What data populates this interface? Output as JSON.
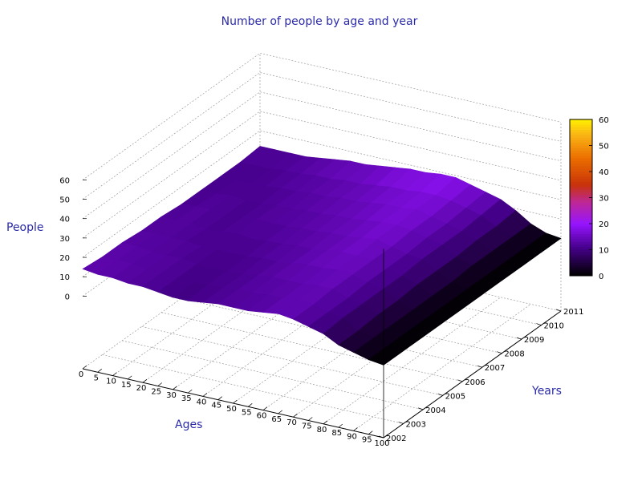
{
  "chart_data": {
    "type": "surface3d",
    "title": "Number of people by age and year",
    "xlabel": "Ages",
    "ylabel": "Years",
    "zlabel": "People",
    "ages": [
      0,
      5,
      10,
      15,
      20,
      25,
      30,
      35,
      40,
      45,
      50,
      55,
      60,
      65,
      70,
      75,
      80,
      85,
      90,
      95,
      100
    ],
    "years": [
      2002,
      2003,
      2004,
      2005,
      2006,
      2007,
      2008,
      2009,
      2010,
      2011
    ],
    "x_ticks": [
      "0",
      "5",
      "10",
      "15",
      "20",
      "25",
      "30",
      "35",
      "40",
      "45",
      "50",
      "55",
      "60",
      "65",
      "70",
      "75",
      "80",
      "85",
      "90",
      "95",
      "100"
    ],
    "y_ticks": [
      "2002",
      "2003",
      "2004",
      "2005",
      "2006",
      "2007",
      "2008",
      "2009",
      "2010",
      "2011"
    ],
    "z_ticks": [
      "0",
      "10",
      "20",
      "30",
      "40",
      "50",
      "60"
    ],
    "zlim": [
      0,
      60
    ],
    "colorbar": {
      "ticks": [
        "0",
        "10",
        "20",
        "30",
        "40",
        "50",
        "60"
      ],
      "range": [
        0,
        60
      ]
    },
    "grid": true,
    "people": [
      [
        14,
        13,
        13,
        12,
        12,
        11,
        10,
        10,
        11,
        12,
        12,
        12,
        13,
        14,
        13,
        11,
        9,
        5,
        3,
        1,
        0
      ],
      [
        13,
        13,
        13,
        12,
        12,
        11,
        10,
        11,
        11,
        12,
        12,
        13,
        13,
        14,
        13,
        11,
        10,
        5,
        3,
        1,
        0
      ],
      [
        13,
        13,
        12,
        12,
        12,
        11,
        10,
        11,
        11,
        12,
        13,
        13,
        13,
        14,
        14,
        11,
        10,
        6,
        3,
        1,
        0
      ],
      [
        12,
        12,
        12,
        12,
        11,
        11,
        11,
        11,
        12,
        12,
        13,
        14,
        14,
        15,
        14,
        12,
        10,
        6,
        3,
        1,
        0
      ],
      [
        12,
        12,
        12,
        11,
        11,
        12,
        11,
        12,
        12,
        13,
        13,
        14,
        15,
        15,
        14,
        12,
        10,
        7,
        3,
        1,
        0
      ],
      [
        11,
        12,
        12,
        11,
        11,
        12,
        12,
        12,
        13,
        13,
        14,
        14,
        15,
        16,
        14,
        12,
        11,
        7,
        3,
        1,
        0
      ],
      [
        11,
        11,
        12,
        11,
        11,
        12,
        12,
        13,
        13,
        14,
        14,
        15,
        16,
        16,
        15,
        13,
        11,
        7,
        4,
        1,
        0
      ],
      [
        11,
        11,
        11,
        11,
        12,
        12,
        13,
        13,
        14,
        14,
        15,
        16,
        16,
        17,
        15,
        13,
        11,
        8,
        4,
        1,
        0
      ],
      [
        11,
        11,
        11,
        12,
        12,
        13,
        13,
        14,
        14,
        15,
        16,
        16,
        17,
        17,
        16,
        14,
        12,
        8,
        4,
        1,
        0
      ],
      [
        12,
        12,
        12,
        12,
        13,
        14,
        15,
        15,
        16,
        17,
        18,
        18,
        19,
        19,
        17,
        15,
        13,
        9,
        4,
        1,
        0
      ]
    ]
  }
}
